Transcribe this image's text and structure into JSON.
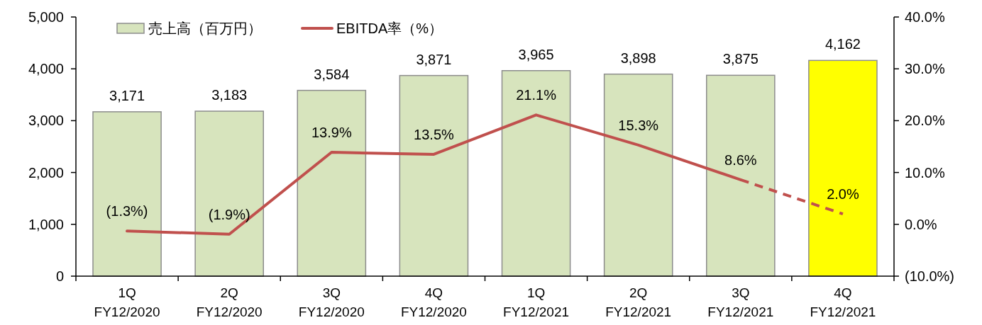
{
  "chart_data": {
    "type": "bar",
    "categories": [
      "1Q\nFY12/2020",
      "2Q\nFY12/2020",
      "3Q\nFY12/2020",
      "4Q\nFY12/2020",
      "1Q\nFY12/2021",
      "2Q\nFY12/2021",
      "3Q\nFY12/2021",
      "4Q\nFY12/2021"
    ],
    "series": [
      {
        "name": "売上高（百万円）",
        "color": "#d7e4bd",
        "colors": [
          "#d7e4bd",
          "#d7e4bd",
          "#d7e4bd",
          "#d7e4bd",
          "#d7e4bd",
          "#d7e4bd",
          "#d7e4bd",
          "#ffff00"
        ],
        "values": [
          3171,
          3183,
          3584,
          3871,
          3965,
          3898,
          3875,
          4162
        ],
        "value_labels": [
          "3,171",
          "3,183",
          "3,584",
          "3,871",
          "3,965",
          "3,898",
          "3,875",
          "4,162"
        ]
      },
      {
        "name": "EBITDA率（%）",
        "type": "line",
        "axis": "y2",
        "color": "#c0504d",
        "line_style": "solid",
        "values": [
          -1.3,
          -1.9,
          13.9,
          13.5,
          21.1,
          15.3,
          8.6,
          null
        ],
        "value_labels": [
          "(1.3%)",
          "(1.9%)",
          "13.9%",
          "13.5%",
          "21.1%",
          "15.3%",
          "8.6%",
          null
        ]
      },
      {
        "type": "line",
        "axis": "y2",
        "color": "#c0504d",
        "line_style": "dashed",
        "values": [
          null,
          null,
          null,
          null,
          null,
          null,
          8.6,
          2.0
        ],
        "value_labels": [
          null,
          null,
          null,
          null,
          null,
          null,
          null,
          "2.0%"
        ]
      }
    ],
    "ylim": [
      0,
      5000
    ],
    "yticks": [
      0,
      {
        "value": 1000,
        "label": "1,000"
      },
      {
        "value": 2000,
        "label": "2,000"
      },
      {
        "value": 3000,
        "label": "3,000"
      },
      {
        "value": 4000,
        "label": "4,000"
      },
      {
        "value": 5000,
        "label": "5,000"
      }
    ],
    "y2lim": [
      -10,
      40
    ],
    "y2ticks": [
      {
        "value": -10,
        "label": "(10.0%)"
      },
      {
        "value": 0,
        "label": "0.0%"
      },
      {
        "value": 10,
        "label": "10.0%"
      },
      {
        "value": 20,
        "label": "20.0%"
      },
      {
        "value": 30,
        "label": "30.0%"
      },
      {
        "value": 40,
        "label": "40.0%"
      }
    ],
    "legend": "top left"
  }
}
